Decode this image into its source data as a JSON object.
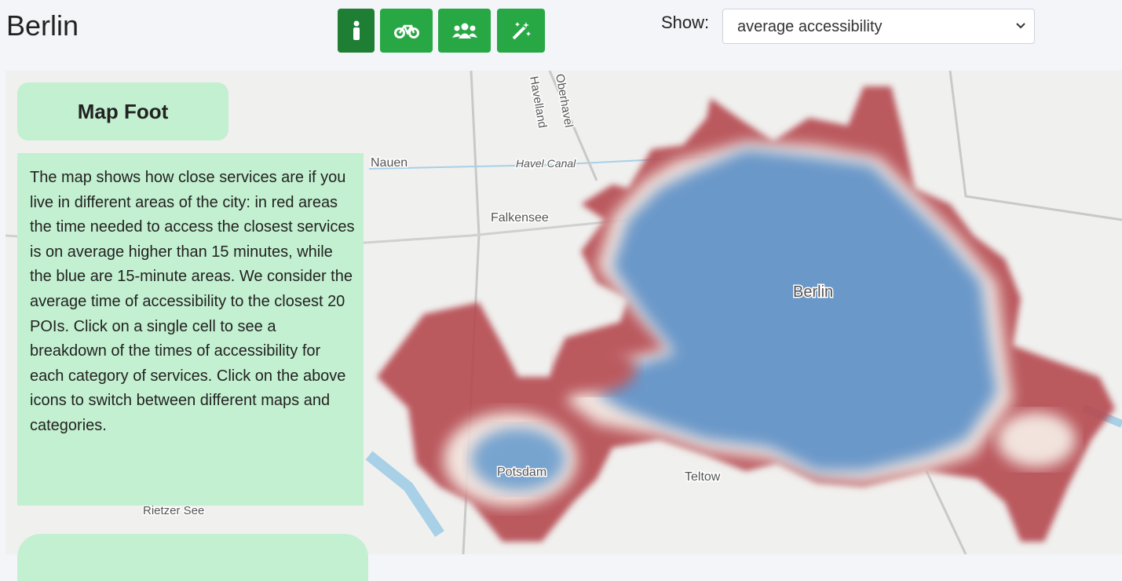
{
  "header": {
    "title": "Berlin",
    "show_label": "Show:",
    "selected": "average accessibility"
  },
  "panel": {
    "title": "Map Foot",
    "text": "The map shows how close services are if you live in different areas of the city: in red areas the time needed to access the closest services is on average higher than 15 minutes, while the blue are 15-minute areas. We consider the average time of accessibility to the closest 20 POIs. Click on a single cell to see a breakdown of the times of accessibility for each category of services. Click on the above icons to switch between different maps and categories."
  },
  "map": {
    "labels": [
      "Nauen",
      "Havel Canal",
      "Falkensee",
      "Berlin",
      "Potsdam",
      "Teltow",
      "Rietzer See",
      "Oberhavel",
      "Havelland"
    ]
  }
}
